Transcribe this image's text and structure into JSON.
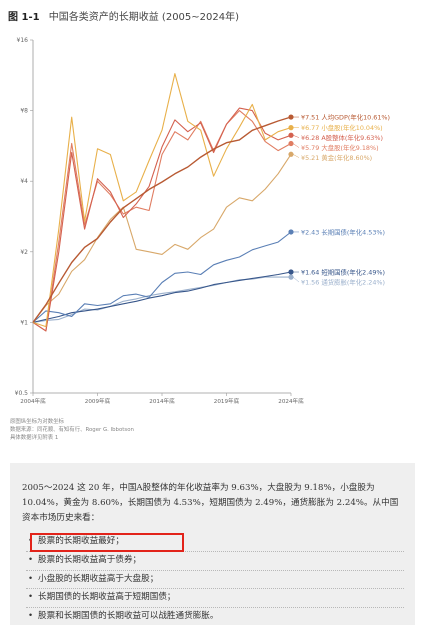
{
  "figure": {
    "number": "图 1-1",
    "title": "中国各类资产的长期收益 (2005~2024年)"
  },
  "notes": [
    "原图纵坐标为对数坐标",
    "数据来源：同花顺、有知有行、Roger G. Ibbotson",
    "具体数据详见附表 1"
  ],
  "chart_data": {
    "type": "line",
    "title": "中国各类资产的长期收益 (2005~2024年)",
    "xlabel": "",
    "ylabel": "",
    "yscale": "log",
    "ylim": [
      0.5,
      16
    ],
    "xlim": [
      2004,
      2024
    ],
    "y_ticks": [
      "¥16",
      "¥8",
      "¥4",
      "¥2",
      "¥1",
      "¥0.5"
    ],
    "x_ticks": [
      "2004年底",
      "2009年底",
      "2014年底",
      "2019年底",
      "2024年底"
    ],
    "legend_placement": "right (labels at line ends)",
    "series": [
      {
        "key": "gdp",
        "label": "¥7.51 人均GDP(年化10.61%)",
        "color": "#b85a33",
        "values": [
          1,
          1.19,
          1.47,
          1.8,
          2.09,
          2.28,
          2.68,
          3.08,
          3.37,
          3.69,
          3.97,
          4.3,
          4.6,
          5.07,
          5.48,
          5.84,
          6.0,
          6.59,
          6.9,
          7.22,
          7.51
        ]
      },
      {
        "key": "small",
        "label": "¥6.77 小盘股(年化10.04%)",
        "color": "#e8b04a",
        "values": [
          1,
          0.96,
          2.5,
          7.5,
          2.7,
          5.5,
          5.2,
          3.3,
          3.6,
          4.9,
          6.6,
          11.5,
          7.2,
          6.6,
          4.2,
          5.5,
          6.8,
          8.5,
          6.0,
          6.5,
          6.77
        ]
      },
      {
        "key": "a_share",
        "label": "¥6.28 A股整体(年化9.63%)",
        "color": "#d4614f",
        "values": [
          1,
          0.92,
          2.0,
          5.3,
          2.5,
          4.1,
          3.6,
          2.8,
          3.2,
          3.8,
          5.6,
          7.3,
          6.5,
          7.1,
          5.3,
          7.0,
          8.2,
          8.0,
          6.4,
          6.0,
          6.28
        ]
      },
      {
        "key": "large",
        "label": "¥5.79 大盘股(年化9.18%)",
        "color": "#e07d62",
        "values": [
          1,
          0.92,
          2.2,
          5.8,
          2.6,
          4.0,
          3.5,
          2.9,
          3.1,
          3.0,
          5.2,
          6.5,
          6.0,
          7.2,
          5.4,
          7.0,
          8.0,
          7.2,
          5.9,
          5.4,
          5.79
        ]
      },
      {
        "key": "gold",
        "label": "¥5.21 黄金(年化8.60%)",
        "color": "#d8a86a",
        "values": [
          1,
          1.18,
          1.32,
          1.65,
          1.85,
          2.3,
          2.75,
          3.1,
          2.05,
          2.0,
          1.95,
          2.15,
          2.05,
          2.3,
          2.5,
          3.1,
          3.4,
          3.3,
          3.7,
          4.3,
          5.21
        ]
      },
      {
        "key": "ltbond",
        "label": "¥2.43 长期国债(年化4.53%)",
        "color": "#5a7fb5",
        "values": [
          1,
          1.12,
          1.1,
          1.06,
          1.2,
          1.18,
          1.2,
          1.3,
          1.32,
          1.28,
          1.48,
          1.62,
          1.64,
          1.6,
          1.76,
          1.84,
          1.9,
          2.04,
          2.12,
          2.2,
          2.43
        ]
      },
      {
        "key": "stbond",
        "label": "¥1.64 短期国债(年化2.49%)",
        "color": "#37568a",
        "values": [
          1,
          1.03,
          1.06,
          1.1,
          1.12,
          1.14,
          1.17,
          1.2,
          1.23,
          1.27,
          1.3,
          1.34,
          1.36,
          1.4,
          1.45,
          1.48,
          1.51,
          1.54,
          1.57,
          1.6,
          1.64
        ]
      },
      {
        "key": "cpi",
        "label": "¥1.56 通货膨胀(年化2.24%)",
        "color": "#9bb0cc",
        "values": [
          1,
          1.02,
          1.03,
          1.08,
          1.14,
          1.13,
          1.17,
          1.23,
          1.26,
          1.3,
          1.33,
          1.35,
          1.38,
          1.41,
          1.44,
          1.48,
          1.52,
          1.53,
          1.56,
          1.56,
          1.56
        ]
      }
    ]
  },
  "panel": {
    "summary": "2005～2024 这 20 年，中国A股整体的年化收益率为 9.63%，大盘股为 9.18%，小盘股为 10.04%，黄金为 8.60%，长期国债为 4.53%，短期国债为 2.49%，通货膨胀为 2.24%。从中国资本市场历史来看：",
    "bullets": [
      "股票的长期收益最好；",
      "股票的长期收益高于债券；",
      "小盘股的长期收益高于大盘股；",
      "长期国债的长期收益高于短期国债；",
      "股票和长期国债的长期收益可以战胜通货膨胀。"
    ]
  },
  "colors": {
    "highlight_border": "#e2231a",
    "panel_bg": "#efefef",
    "axis": "#999999"
  }
}
